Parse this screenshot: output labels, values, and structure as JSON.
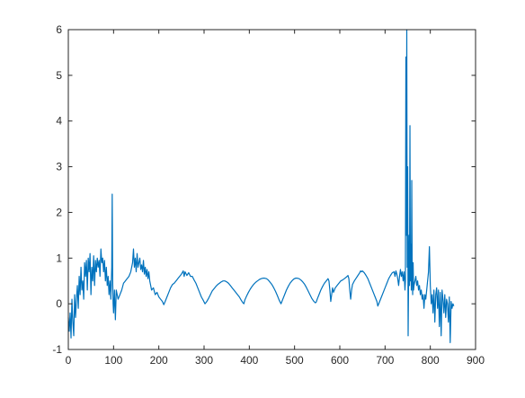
{
  "chart_data": {
    "type": "line",
    "title": "",
    "xlabel": "",
    "ylabel": "",
    "xlim": [
      0,
      900
    ],
    "ylim": [
      -1,
      6
    ],
    "x_ticks": [
      "0",
      "100",
      "200",
      "300",
      "400",
      "500",
      "600",
      "700",
      "800",
      "900"
    ],
    "y_ticks": [
      "-1",
      "0",
      "1",
      "2",
      "3",
      "4",
      "5",
      "6"
    ],
    "grid": false,
    "legend": "none",
    "series": [
      {
        "color": "#0072BD",
        "points": [
          [
            0,
            -0.3
          ],
          [
            2,
            -0.6
          ],
          [
            4,
            -0.2
          ],
          [
            6,
            -0.75
          ],
          [
            8,
            0.1
          ],
          [
            10,
            -0.4
          ],
          [
            12,
            -0.7
          ],
          [
            14,
            0.2
          ],
          [
            16,
            -0.3
          ],
          [
            18,
            0.1
          ],
          [
            20,
            0.4
          ],
          [
            22,
            -0.1
          ],
          [
            24,
            0.6
          ],
          [
            26,
            0.2
          ],
          [
            28,
            0.8
          ],
          [
            30,
            0.3
          ],
          [
            32,
            0.5
          ],
          [
            34,
            0.1
          ],
          [
            36,
            0.9
          ],
          [
            38,
            0.6
          ],
          [
            40,
            0.95
          ],
          [
            42,
            0.3
          ],
          [
            44,
            1.0
          ],
          [
            46,
            0.7
          ],
          [
            48,
            1.1
          ],
          [
            50,
            0.2
          ],
          [
            52,
            0.8
          ],
          [
            54,
            0.5
          ],
          [
            56,
            1.05
          ],
          [
            58,
            0.4
          ],
          [
            60,
            0.95
          ],
          [
            62,
            0.7
          ],
          [
            64,
            1.0
          ],
          [
            66,
            0.8
          ],
          [
            68,
            0.95
          ],
          [
            70,
            0.6
          ],
          [
            72,
            1.2
          ],
          [
            74,
            0.9
          ],
          [
            76,
            1.0
          ],
          [
            78,
            0.7
          ],
          [
            80,
            0.95
          ],
          [
            82,
            0.5
          ],
          [
            84,
            0.8
          ],
          [
            86,
            0.4
          ],
          [
            88,
            0.6
          ],
          [
            90,
            0.2
          ],
          [
            92,
            0.5
          ],
          [
            94,
            0.1
          ],
          [
            96,
            0.8
          ],
          [
            97,
            2.4
          ],
          [
            98,
            0.5
          ],
          [
            99,
            0.0
          ],
          [
            100,
            -0.2
          ],
          [
            102,
            0.3
          ],
          [
            104,
            -0.35
          ],
          [
            106,
            0.3
          ],
          [
            108,
            0.2
          ],
          [
            110,
            0.1
          ],
          [
            114,
            0.2
          ],
          [
            118,
            0.3
          ],
          [
            122,
            0.45
          ],
          [
            126,
            0.5
          ],
          [
            130,
            0.55
          ],
          [
            134,
            0.6
          ],
          [
            138,
            0.7
          ],
          [
            142,
            0.9
          ],
          [
            144,
            1.2
          ],
          [
            146,
            0.8
          ],
          [
            148,
            1.0
          ],
          [
            150,
            0.7
          ],
          [
            152,
            1.1
          ],
          [
            154,
            0.8
          ],
          [
            156,
            0.9
          ],
          [
            158,
            1.0
          ],
          [
            160,
            0.75
          ],
          [
            162,
            0.85
          ],
          [
            164,
            0.7
          ],
          [
            166,
            0.95
          ],
          [
            168,
            0.65
          ],
          [
            170,
            0.8
          ],
          [
            172,
            0.6
          ],
          [
            174,
            0.75
          ],
          [
            176,
            0.55
          ],
          [
            178,
            0.7
          ],
          [
            180,
            0.5
          ],
          [
            182,
            0.4
          ],
          [
            184,
            0.3
          ],
          [
            188,
            0.35
          ],
          [
            192,
            0.2
          ],
          [
            196,
            0.25
          ],
          [
            200,
            0.15
          ],
          [
            204,
            0.1
          ],
          [
            208,
            0.05
          ],
          [
            211,
            -0.02
          ],
          [
            214,
            0.05
          ],
          [
            218,
            0.15
          ],
          [
            222,
            0.25
          ],
          [
            226,
            0.35
          ],
          [
            230,
            0.42
          ],
          [
            234,
            0.45
          ],
          [
            238,
            0.5
          ],
          [
            242,
            0.55
          ],
          [
            246,
            0.6
          ],
          [
            250,
            0.65
          ],
          [
            254,
            0.72
          ],
          [
            256,
            0.6
          ],
          [
            258,
            0.7
          ],
          [
            262,
            0.62
          ],
          [
            266,
            0.68
          ],
          [
            270,
            0.6
          ],
          [
            274,
            0.6
          ],
          [
            278,
            0.52
          ],
          [
            282,
            0.45
          ],
          [
            286,
            0.35
          ],
          [
            290,
            0.25
          ],
          [
            294,
            0.15
          ],
          [
            298,
            0.08
          ],
          [
            302,
            0.0
          ],
          [
            306,
            0.05
          ],
          [
            310,
            0.12
          ],
          [
            314,
            0.2
          ],
          [
            318,
            0.28
          ],
          [
            322,
            0.33
          ],
          [
            326,
            0.38
          ],
          [
            330,
            0.42
          ],
          [
            334,
            0.45
          ],
          [
            338,
            0.48
          ],
          [
            342,
            0.5
          ],
          [
            346,
            0.5
          ],
          [
            350,
            0.48
          ],
          [
            354,
            0.45
          ],
          [
            358,
            0.4
          ],
          [
            362,
            0.35
          ],
          [
            366,
            0.3
          ],
          [
            370,
            0.25
          ],
          [
            374,
            0.2
          ],
          [
            378,
            0.15
          ],
          [
            382,
            0.08
          ],
          [
            386,
            0.02
          ],
          [
            388,
            0.0
          ],
          [
            390,
            0.08
          ],
          [
            394,
            0.17
          ],
          [
            398,
            0.25
          ],
          [
            402,
            0.32
          ],
          [
            406,
            0.38
          ],
          [
            410,
            0.43
          ],
          [
            414,
            0.47
          ],
          [
            418,
            0.5
          ],
          [
            422,
            0.53
          ],
          [
            426,
            0.55
          ],
          [
            430,
            0.56
          ],
          [
            434,
            0.56
          ],
          [
            438,
            0.55
          ],
          [
            442,
            0.52
          ],
          [
            446,
            0.47
          ],
          [
            450,
            0.42
          ],
          [
            454,
            0.35
          ],
          [
            458,
            0.27
          ],
          [
            462,
            0.18
          ],
          [
            466,
            0.08
          ],
          [
            470,
            0.0
          ],
          [
            474,
            0.1
          ],
          [
            478,
            0.2
          ],
          [
            482,
            0.3
          ],
          [
            486,
            0.38
          ],
          [
            490,
            0.45
          ],
          [
            494,
            0.5
          ],
          [
            498,
            0.54
          ],
          [
            502,
            0.56
          ],
          [
            506,
            0.56
          ],
          [
            510,
            0.55
          ],
          [
            514,
            0.52
          ],
          [
            518,
            0.48
          ],
          [
            522,
            0.43
          ],
          [
            526,
            0.36
          ],
          [
            530,
            0.28
          ],
          [
            534,
            0.2
          ],
          [
            538,
            0.12
          ],
          [
            542,
            0.06
          ],
          [
            546,
            0.02
          ],
          [
            548,
            0.04
          ],
          [
            550,
            0.1
          ],
          [
            554,
            0.2
          ],
          [
            558,
            0.3
          ],
          [
            562,
            0.38
          ],
          [
            566,
            0.45
          ],
          [
            570,
            0.5
          ],
          [
            574,
            0.55
          ],
          [
            576,
            0.5
          ],
          [
            578,
            0.3
          ],
          [
            580,
            0.05
          ],
          [
            582,
            0.2
          ],
          [
            584,
            0.35
          ],
          [
            586,
            0.25
          ],
          [
            588,
            0.3
          ],
          [
            590,
            0.35
          ],
          [
            594,
            0.4
          ],
          [
            598,
            0.45
          ],
          [
            602,
            0.5
          ],
          [
            606,
            0.52
          ],
          [
            610,
            0.55
          ],
          [
            614,
            0.58
          ],
          [
            618,
            0.62
          ],
          [
            620,
            0.55
          ],
          [
            622,
            0.3
          ],
          [
            624,
            0.1
          ],
          [
            626,
            0.3
          ],
          [
            628,
            0.42
          ],
          [
            632,
            0.5
          ],
          [
            636,
            0.56
          ],
          [
            640,
            0.62
          ],
          [
            644,
            0.68
          ],
          [
            646,
            0.72
          ],
          [
            648,
            0.7
          ],
          [
            650,
            0.72
          ],
          [
            654,
            0.68
          ],
          [
            658,
            0.62
          ],
          [
            662,
            0.55
          ],
          [
            666,
            0.45
          ],
          [
            670,
            0.35
          ],
          [
            674,
            0.25
          ],
          [
            678,
            0.15
          ],
          [
            682,
            0.05
          ],
          [
            684,
            -0.05
          ],
          [
            688,
            0.05
          ],
          [
            692,
            0.15
          ],
          [
            696,
            0.25
          ],
          [
            700,
            0.35
          ],
          [
            704,
            0.45
          ],
          [
            708,
            0.55
          ],
          [
            712,
            0.62
          ],
          [
            716,
            0.68
          ],
          [
            720,
            0.7
          ],
          [
            722,
            0.6
          ],
          [
            724,
            0.72
          ],
          [
            726,
            0.65
          ],
          [
            728,
            0.55
          ],
          [
            730,
            0.4
          ],
          [
            732,
            0.6
          ],
          [
            734,
            0.75
          ],
          [
            736,
            0.6
          ],
          [
            738,
            0.7
          ],
          [
            740,
            0.5
          ],
          [
            742,
            0.7
          ],
          [
            744,
            0.3
          ],
          [
            745,
            0.5
          ],
          [
            746,
            5.4
          ],
          [
            747,
            1.5
          ],
          [
            748,
            6.0
          ],
          [
            749,
            0.8
          ],
          [
            750,
            3.0
          ],
          [
            751,
            -0.7
          ],
          [
            752,
            0.5
          ],
          [
            753,
            1.5
          ],
          [
            754,
            0.4
          ],
          [
            755,
            3.9
          ],
          [
            756,
            0.5
          ],
          [
            757,
            1.3
          ],
          [
            758,
            0.3
          ],
          [
            759,
            2.7
          ],
          [
            760,
            0.6
          ],
          [
            761,
            0.2
          ],
          [
            762,
            0.9
          ],
          [
            763,
            0.3
          ],
          [
            764,
            0.4
          ],
          [
            766,
            0.5
          ],
          [
            768,
            0.6
          ],
          [
            770,
            0.4
          ],
          [
            772,
            0.5
          ],
          [
            774,
            0.3
          ],
          [
            776,
            0.4
          ],
          [
            778,
            0.2
          ],
          [
            780,
            0.3
          ],
          [
            782,
            0.1
          ],
          [
            784,
            0.2
          ],
          [
            786,
            -0.1
          ],
          [
            788,
            0.2
          ],
          [
            790,
            0.1
          ],
          [
            792,
            0.3
          ],
          [
            794,
            0.5
          ],
          [
            796,
            0.7
          ],
          [
            798,
            1.25
          ],
          [
            800,
            0.4
          ],
          [
            802,
            0.0
          ],
          [
            804,
            0.2
          ],
          [
            806,
            -0.2
          ],
          [
            808,
            0.3
          ],
          [
            810,
            -0.4
          ],
          [
            812,
            0.2
          ],
          [
            814,
            0.35
          ],
          [
            816,
            -0.1
          ],
          [
            818,
            0.3
          ],
          [
            820,
            -0.5
          ],
          [
            822,
            0.25
          ],
          [
            824,
            -0.7
          ],
          [
            826,
            0.3
          ],
          [
            828,
            0.1
          ],
          [
            830,
            -0.2
          ],
          [
            832,
            0.2
          ],
          [
            834,
            -0.3
          ],
          [
            836,
            0.1
          ],
          [
            838,
            0.0
          ],
          [
            840,
            -0.4
          ],
          [
            842,
            0.15
          ],
          [
            844,
            -0.85
          ],
          [
            846,
            0.05
          ],
          [
            848,
            -0.1
          ],
          [
            850,
            0.0
          ],
          [
            852,
            -0.05
          ]
        ]
      }
    ]
  }
}
